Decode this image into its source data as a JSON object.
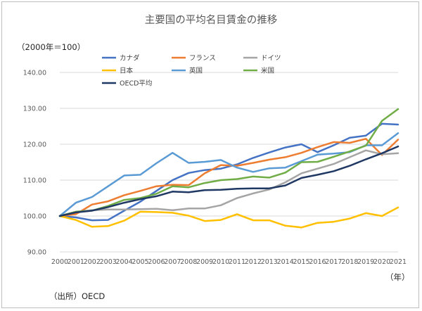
{
  "chart_data": {
    "type": "line",
    "title": "主要国の平均名目賃金の推移",
    "ylabel": "（2000年＝100）",
    "xlabel": "（年）",
    "source_note": "（出所）OECD",
    "ylim": [
      90,
      140
    ],
    "yticks": [
      90,
      100,
      110,
      120,
      130,
      140
    ],
    "ytick_labels": [
      "90.00",
      "100.00",
      "110.00",
      "120.00",
      "130.00",
      "140.00"
    ],
    "categories": [
      "2000",
      "2001",
      "2002",
      "2003",
      "2004",
      "2005",
      "2006",
      "2007",
      "2008",
      "2009",
      "2010",
      "2011",
      "2012",
      "2013",
      "2014",
      "2015",
      "2016",
      "2017",
      "2018",
      "2019",
      "2020",
      "2021"
    ],
    "series": [
      {
        "name": "カナダ",
        "color": "#4472C4",
        "values": [
          100,
          99.6,
          98.8,
          98.9,
          101.5,
          104.0,
          107.0,
          110.0,
          112.0,
          112.8,
          113.2,
          114.4,
          116.2,
          117.7,
          119.1,
          120.0,
          117.8,
          119.7,
          121.8,
          122.4,
          125.7,
          125.5
        ]
      },
      {
        "name": "フランス",
        "color": "#ED7D31",
        "values": [
          100,
          100.5,
          103.2,
          104.1,
          105.8,
          107.0,
          108.3,
          108.7,
          108.6,
          111.9,
          114.2,
          114.0,
          114.8,
          115.7,
          116.4,
          117.6,
          119.2,
          120.6,
          120.4,
          121.5,
          117.0,
          121.3
        ]
      },
      {
        "name": "ドイツ",
        "color": "#A5A5A5",
        "values": [
          100,
          101.2,
          101.6,
          101.8,
          101.8,
          101.9,
          102.0,
          101.6,
          102.1,
          102.1,
          103.0,
          105.0,
          106.3,
          107.4,
          109.4,
          111.9,
          113.2,
          114.5,
          116.4,
          118.3,
          117.2,
          117.5
        ]
      },
      {
        "name": "日本",
        "color": "#FFC000",
        "values": [
          100,
          98.9,
          97.0,
          97.2,
          98.7,
          101.2,
          101.1,
          100.9,
          100.1,
          98.6,
          98.9,
          100.5,
          98.8,
          98.8,
          97.3,
          96.8,
          98.1,
          98.4,
          99.3,
          100.8,
          100.0,
          102.4
        ]
      },
      {
        "name": "英国",
        "color": "#5B9BD5",
        "values": [
          100,
          103.7,
          105.3,
          108.3,
          111.3,
          111.5,
          114.7,
          117.6,
          114.8,
          115.1,
          115.6,
          113.5,
          112.3,
          113.3,
          113.5,
          115.3,
          117.1,
          117.4,
          117.8,
          119.7,
          119.7,
          123.1
        ]
      },
      {
        "name": "米国",
        "color": "#70AD47",
        "values": [
          100,
          101.2,
          101.5,
          102.8,
          104.5,
          105.0,
          106.2,
          108.3,
          108.0,
          109.2,
          110.0,
          110.3,
          111.0,
          110.7,
          112.1,
          115.0,
          115.1,
          116.5,
          118.0,
          119.6,
          126.5,
          129.8
        ]
      },
      {
        "name": "OECD平均",
        "color": "#203864",
        "values": [
          100,
          101.0,
          101.5,
          102.5,
          103.7,
          104.7,
          105.5,
          106.8,
          106.6,
          107.2,
          107.3,
          107.6,
          107.7,
          107.7,
          108.5,
          110.6,
          111.5,
          112.5,
          114.0,
          115.8,
          117.5,
          119.4
        ]
      }
    ]
  }
}
